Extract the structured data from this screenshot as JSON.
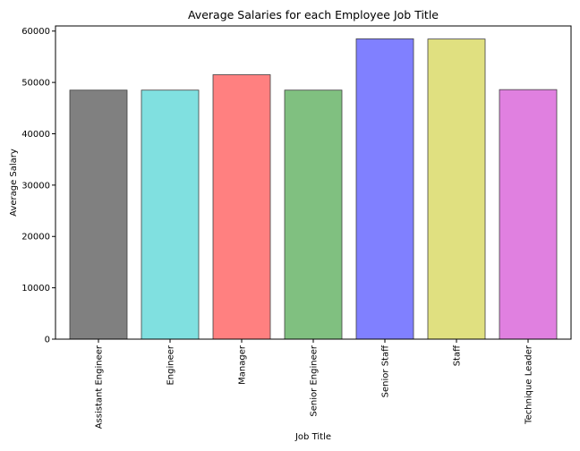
{
  "chart_data": {
    "type": "bar",
    "title": "Average Salaries for each Employee Job Title",
    "xlabel": "Job Title",
    "ylabel": "Average Salary",
    "categories": [
      "Assistant Engineer",
      "Engineer",
      "Manager",
      "Senior Engineer",
      "Senior Staff",
      "Staff",
      "Technique Leader"
    ],
    "values": [
      48500,
      48500,
      51500,
      48500,
      58500,
      58450,
      48600
    ],
    "colors": [
      "#808080",
      "#80e0e0",
      "#ff8080",
      "#80c080",
      "#8080ff",
      "#e0e080",
      "#e080e0"
    ],
    "ylim": [
      0,
      61000
    ],
    "yticks": [
      0,
      10000,
      20000,
      30000,
      40000,
      50000,
      60000
    ],
    "ytick_labels": [
      "0",
      "10000",
      "20000",
      "30000",
      "40000",
      "50000",
      "60000"
    ],
    "grid": false,
    "legend": false
  }
}
